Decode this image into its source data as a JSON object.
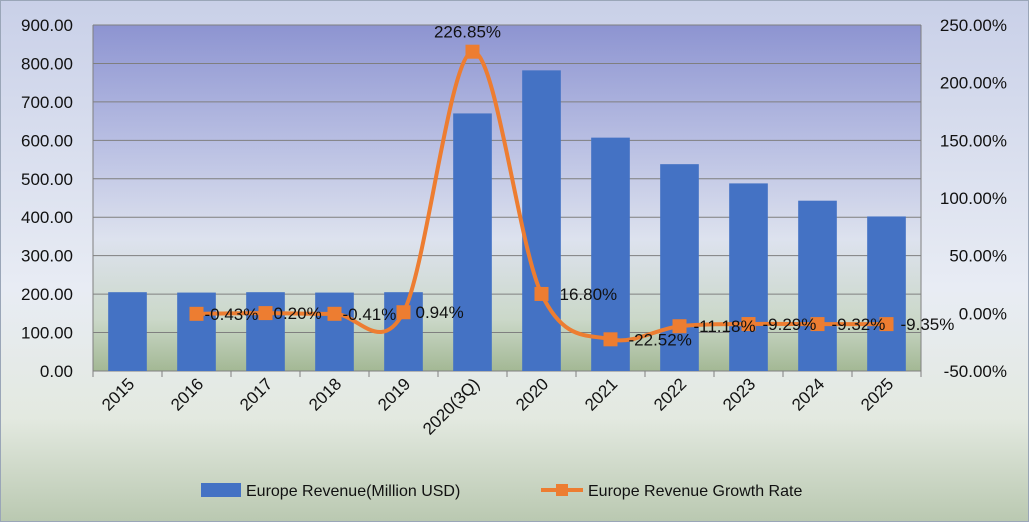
{
  "chart_data": {
    "type": "bar+line",
    "categories": [
      "2015",
      "2016",
      "2017",
      "2018",
      "2019",
      "2020(3Q)",
      "2020",
      "2021",
      "2022",
      "2023",
      "2024",
      "2025"
    ],
    "series": [
      {
        "name": "Europe Revenue(Million USD)",
        "type": "bar",
        "axis": "left",
        "color": "#4472C4",
        "values": [
          205,
          204,
          205,
          204,
          205,
          670,
          782,
          607,
          538,
          488,
          443,
          402
        ]
      },
      {
        "name": "Europe Revenue Growth Rate",
        "type": "line",
        "axis": "right",
        "color": "#ED7D31",
        "values": [
          null,
          -0.43,
          0.2,
          -0.41,
          0.94,
          226.85,
          16.8,
          -22.52,
          -11.18,
          -9.29,
          -9.32,
          -9.35
        ],
        "labels": [
          "",
          "-0.43%",
          "0.20%",
          "-0.41%",
          "0.94%",
          "226.85%",
          "16.80%",
          "-22.52%",
          "-11.18%",
          "-9.29%",
          "-9.32%",
          "-9.35%"
        ]
      }
    ],
    "y_left": {
      "min": 0,
      "max": 900,
      "step": 100,
      "tick_labels": [
        "0.00",
        "100.00",
        "200.00",
        "300.00",
        "400.00",
        "500.00",
        "600.00",
        "700.00",
        "800.00",
        "900.00"
      ]
    },
    "y_right": {
      "min": -50,
      "max": 250,
      "step": 50,
      "tick_labels": [
        "-50.00%",
        "0.00%",
        "50.00%",
        "100.00%",
        "150.00%",
        "200.00%",
        "250.00%"
      ]
    },
    "grid": true,
    "legend_position": "bottom",
    "title": ""
  }
}
